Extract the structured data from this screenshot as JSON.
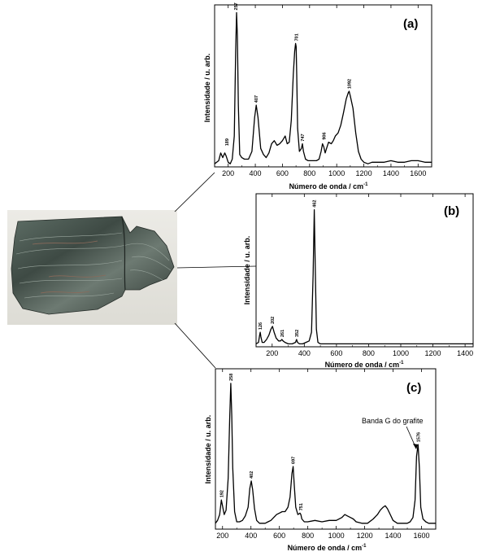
{
  "photo": {
    "subject": "rock sample"
  },
  "chart_data": [
    {
      "id": "a",
      "type": "line",
      "panel_label": "(a)",
      "xlabel": "Número de onda / cm",
      "xlabel_sup": "-1",
      "ylabel": "Intensidade / u. arb.",
      "xlim": [
        100,
        1700
      ],
      "ylim": [
        0,
        1.05
      ],
      "xticks": [
        200,
        400,
        600,
        800,
        1000,
        1200,
        1400,
        1600
      ],
      "series": [
        {
          "x": [
            100,
            130,
            145,
            160,
            175,
            185,
            200,
            215,
            230,
            245,
            255,
            262,
            268,
            275,
            285,
            300,
            320,
            350,
            375,
            395,
            407,
            420,
            440,
            460,
            480,
            500,
            520,
            540,
            560,
            580,
            600,
            620,
            635,
            650,
            665,
            680,
            690,
            697,
            701,
            705,
            712,
            725,
            740,
            747,
            755,
            770,
            790,
            810,
            830,
            850,
            870,
            885,
            895,
            905,
            915,
            925,
            940,
            960,
            975,
            990,
            1010,
            1030,
            1050,
            1070,
            1085,
            1092,
            1100,
            1120,
            1140,
            1160,
            1180,
            1200,
            1230,
            1260,
            1300,
            1350,
            1400,
            1450,
            1500,
            1550,
            1600,
            1650,
            1700
          ],
          "y": [
            0.02,
            0.04,
            0.09,
            0.06,
            0.09,
            0.07,
            0.03,
            0.02,
            0.05,
            0.2,
            0.75,
            1.0,
            0.85,
            0.4,
            0.08,
            0.06,
            0.05,
            0.05,
            0.1,
            0.32,
            0.4,
            0.32,
            0.12,
            0.08,
            0.06,
            0.09,
            0.15,
            0.17,
            0.14,
            0.15,
            0.17,
            0.2,
            0.15,
            0.16,
            0.3,
            0.6,
            0.75,
            0.8,
            0.78,
            0.6,
            0.25,
            0.1,
            0.12,
            0.15,
            0.1,
            0.05,
            0.04,
            0.04,
            0.04,
            0.04,
            0.05,
            0.1,
            0.15,
            0.13,
            0.09,
            0.12,
            0.16,
            0.15,
            0.17,
            0.2,
            0.22,
            0.27,
            0.35,
            0.44,
            0.48,
            0.49,
            0.46,
            0.38,
            0.22,
            0.1,
            0.05,
            0.03,
            0.02,
            0.03,
            0.03,
            0.03,
            0.04,
            0.03,
            0.03,
            0.04,
            0.04,
            0.03,
            0.03
          ]
        }
      ],
      "peak_labels": [
        {
          "x": 189,
          "y": 0.12,
          "text": "189"
        },
        {
          "x": 257,
          "y": 1.0,
          "text": "257"
        },
        {
          "x": 407,
          "y": 0.4,
          "text": "407"
        },
        {
          "x": 701,
          "y": 0.8,
          "text": "701"
        },
        {
          "x": 747,
          "y": 0.15,
          "text": "747"
        },
        {
          "x": 906,
          "y": 0.16,
          "text": "906"
        },
        {
          "x": 1092,
          "y": 0.49,
          "text": "1092"
        }
      ]
    },
    {
      "id": "b",
      "type": "line",
      "panel_label": "(b)",
      "xlabel": "Número de onda / cm",
      "xlabel_sup": "-1",
      "ylabel": "Intensidade / u. arb.",
      "xlim": [
        100,
        1450
      ],
      "ylim": [
        0,
        1.05
      ],
      "xticks": [
        200,
        400,
        600,
        800,
        1000,
        1200,
        1400
      ],
      "series": [
        {
          "x": [
            100,
            115,
            122,
            126,
            130,
            138,
            150,
            165,
            180,
            192,
            202,
            212,
            225,
            240,
            252,
            261,
            268,
            280,
            300,
            325,
            345,
            352,
            358,
            370,
            390,
            410,
            430,
            445,
            455,
            462,
            468,
            475,
            485,
            500,
            530,
            560,
            600,
            650,
            700,
            750,
            800,
            900,
            1000,
            1100,
            1200,
            1300,
            1400,
            1450
          ],
          "y": [
            0.02,
            0.03,
            0.08,
            0.1,
            0.07,
            0.03,
            0.03,
            0.05,
            0.08,
            0.12,
            0.14,
            0.1,
            0.06,
            0.04,
            0.04,
            0.05,
            0.04,
            0.03,
            0.02,
            0.02,
            0.03,
            0.05,
            0.03,
            0.02,
            0.02,
            0.03,
            0.04,
            0.1,
            0.5,
            0.94,
            0.55,
            0.12,
            0.03,
            0.02,
            0.02,
            0.02,
            0.02,
            0.02,
            0.02,
            0.02,
            0.02,
            0.02,
            0.02,
            0.02,
            0.02,
            0.02,
            0.02,
            0.02
          ]
        }
      ],
      "peak_labels": [
        {
          "x": 126,
          "y": 0.1,
          "text": "126"
        },
        {
          "x": 202,
          "y": 0.14,
          "text": "202"
        },
        {
          "x": 261,
          "y": 0.05,
          "text": "261"
        },
        {
          "x": 352,
          "y": 0.05,
          "text": "352"
        },
        {
          "x": 462,
          "y": 0.94,
          "text": "462"
        }
      ]
    },
    {
      "id": "c",
      "type": "line",
      "panel_label": "(c)",
      "xlabel": "Número de onda / cm",
      "xlabel_sup": "-1",
      "ylabel": "Intensidade / u. arb.",
      "xlim": [
        150,
        1700
      ],
      "ylim": [
        0,
        1.1
      ],
      "xticks": [
        200,
        400,
        600,
        800,
        1000,
        1200,
        1400,
        1600
      ],
      "series": [
        {
          "x": [
            150,
            165,
            180,
            192,
            200,
            212,
            225,
            240,
            250,
            258,
            265,
            272,
            285,
            300,
            320,
            340,
            360,
            380,
            392,
            402,
            412,
            425,
            440,
            460,
            480,
            500,
            520,
            540,
            560,
            580,
            600,
            620,
            640,
            660,
            675,
            688,
            697,
            705,
            715,
            730,
            745,
            751,
            758,
            775,
            800,
            850,
            900,
            950,
            1000,
            1040,
            1060,
            1080,
            1100,
            1120,
            1140,
            1180,
            1220,
            1260,
            1290,
            1310,
            1330,
            1345,
            1360,
            1380,
            1400,
            1430,
            1470,
            1500,
            1520,
            1540,
            1555,
            1565,
            1576,
            1585,
            1595,
            1610,
            1630,
            1650,
            1675,
            1700
          ],
          "y": [
            0.04,
            0.06,
            0.1,
            0.2,
            0.16,
            0.1,
            0.13,
            0.35,
            0.75,
            1.0,
            0.78,
            0.42,
            0.12,
            0.05,
            0.05,
            0.06,
            0.09,
            0.15,
            0.28,
            0.33,
            0.27,
            0.14,
            0.06,
            0.04,
            0.04,
            0.04,
            0.05,
            0.06,
            0.08,
            0.1,
            0.11,
            0.12,
            0.12,
            0.15,
            0.22,
            0.38,
            0.43,
            0.3,
            0.15,
            0.1,
            0.11,
            0.1,
            0.07,
            0.05,
            0.05,
            0.06,
            0.05,
            0.06,
            0.06,
            0.08,
            0.1,
            0.09,
            0.08,
            0.07,
            0.05,
            0.04,
            0.04,
            0.07,
            0.1,
            0.13,
            0.15,
            0.16,
            0.14,
            0.1,
            0.06,
            0.04,
            0.04,
            0.04,
            0.05,
            0.08,
            0.2,
            0.5,
            0.58,
            0.42,
            0.15,
            0.07,
            0.05,
            0.04,
            0.04,
            0.04
          ]
        }
      ],
      "peak_labels": [
        {
          "x": 192,
          "y": 0.2,
          "text": "192"
        },
        {
          "x": 258,
          "y": 1.0,
          "text": "258"
        },
        {
          "x": 402,
          "y": 0.33,
          "text": "402"
        },
        {
          "x": 697,
          "y": 0.43,
          "text": "697"
        },
        {
          "x": 751,
          "y": 0.11,
          "text": "751"
        },
        {
          "x": 1576,
          "y": 0.58,
          "text": "1576"
        }
      ],
      "annotation": {
        "text": "Banda G do grafite",
        "x": 1576,
        "y": 0.58
      }
    }
  ]
}
